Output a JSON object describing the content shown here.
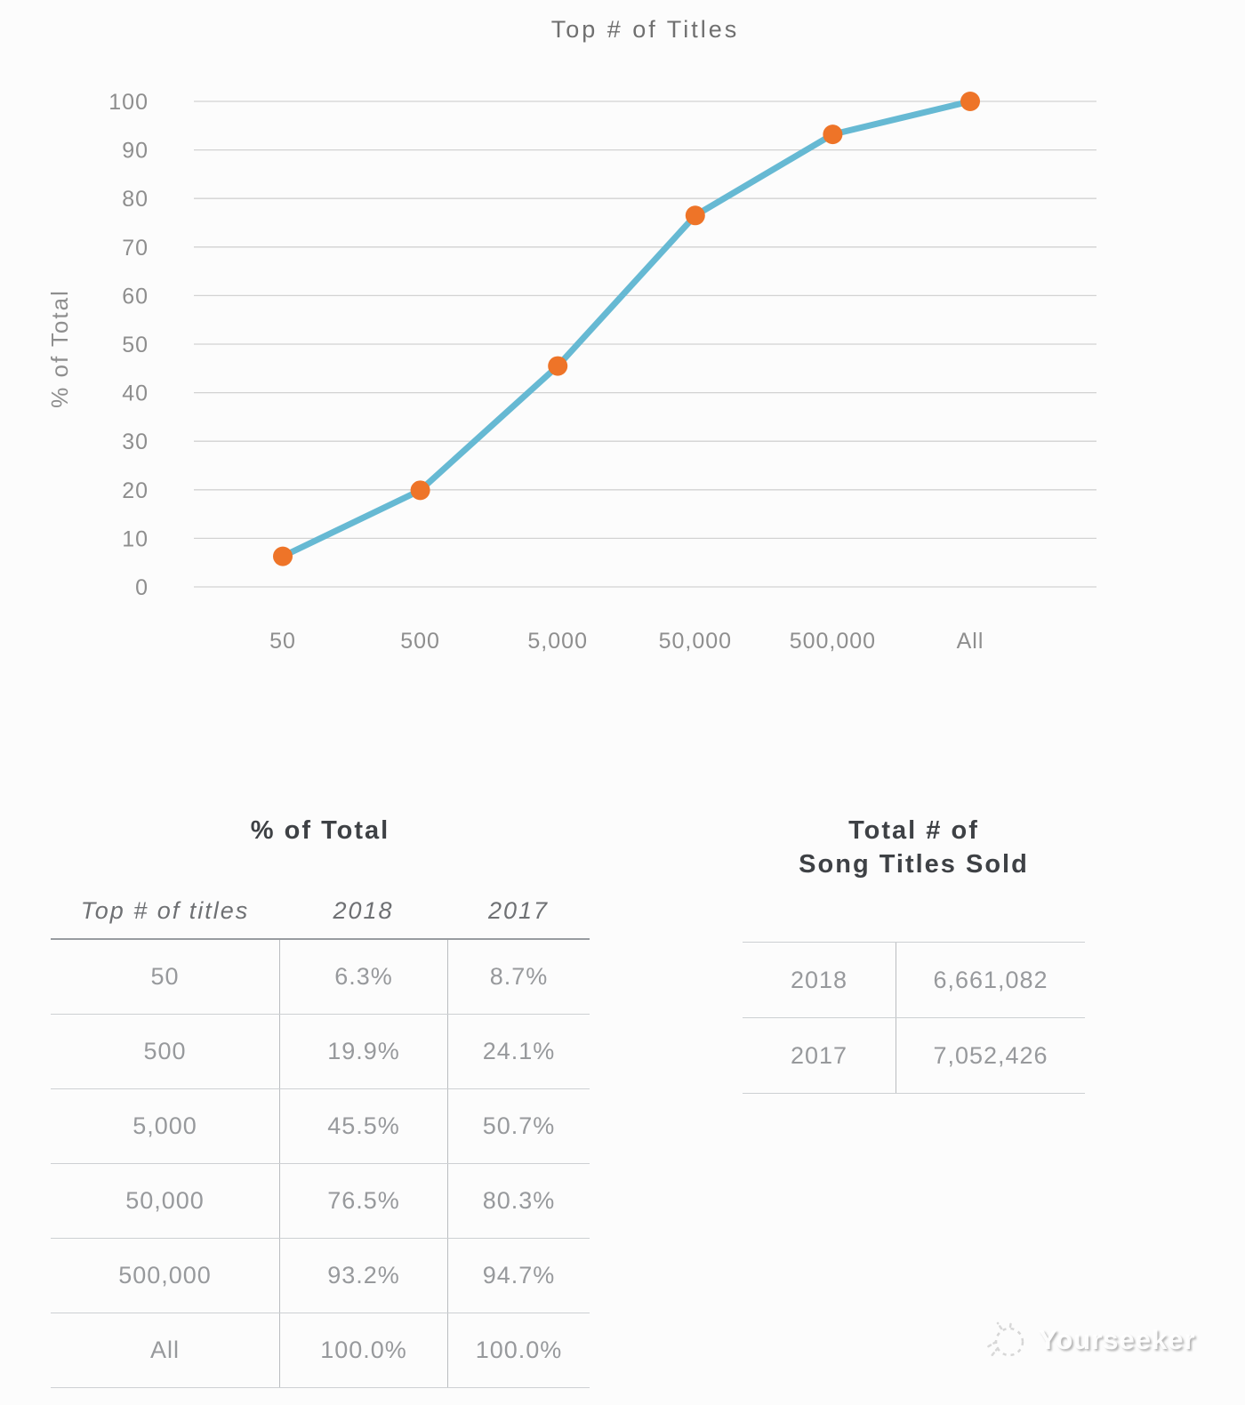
{
  "chart_data": {
    "type": "line",
    "title": "Top # of Titles",
    "xlabel": "",
    "ylabel": "% of Total",
    "categories": [
      "50",
      "500",
      "5,000",
      "50,000",
      "500,000",
      "All"
    ],
    "series": [
      {
        "name": "2018",
        "values": [
          6.3,
          19.9,
          45.5,
          76.5,
          93.2,
          100.0
        ]
      }
    ],
    "ylim": [
      0,
      100
    ],
    "ytick_step": 10,
    "grid": true,
    "legend": "none",
    "line_color": "#66b9d3",
    "marker_color": "#ee7428",
    "grid_color": "#d2d2d2",
    "axis_text_color": "#8e8e8e"
  },
  "tables": {
    "pct_of_total": {
      "title": "% of Total",
      "columns": [
        "Top # of titles",
        "2018",
        "2017"
      ],
      "rows": [
        [
          "50",
          "6.3%",
          "8.7%"
        ],
        [
          "500",
          "19.9%",
          "24.1%"
        ],
        [
          "5,000",
          "45.5%",
          "50.7%"
        ],
        [
          "50,000",
          "76.5%",
          "80.3%"
        ],
        [
          "500,000",
          "93.2%",
          "94.7%"
        ],
        [
          "All",
          "100.0%",
          "100.0%"
        ]
      ]
    },
    "total_sold": {
      "title_line1": "Total # of",
      "title_line2": "Song Titles Sold",
      "rows": [
        [
          "2018",
          "6,661,082"
        ],
        [
          "2017",
          "7,052,426"
        ]
      ]
    }
  },
  "watermark": {
    "label": "Yourseeker"
  }
}
